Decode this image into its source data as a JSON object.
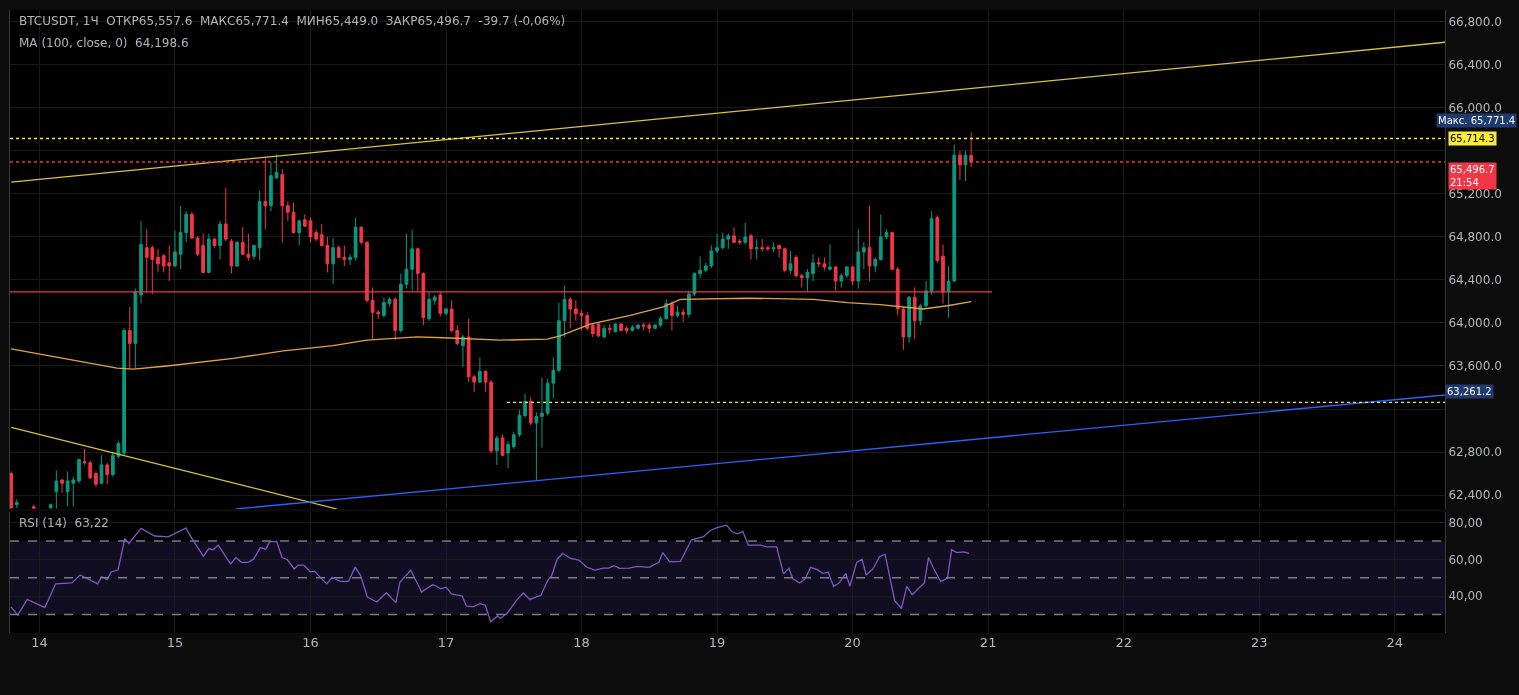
{
  "chart_data": [
    {
      "type": "candlestick",
      "title": "BTCUSDT, 1Ч  ОТКР65,557.6  МАКС65,771.4  МИН65,449.0  ЗАКР65,496.7  -39.7 (-0,06%)",
      "subtitle": "MA (100, close, 0)  64,198.6",
      "x": [
        13.792,
        13.833,
        13.958,
        14.083,
        14.125,
        14.167,
        14.208,
        14.25,
        14.292,
        14.333,
        14.375,
        14.417,
        14.458,
        14.5,
        14.542,
        14.583,
        14.625,
        14.667,
        14.708,
        14.75,
        14.792,
        14.833,
        14.875,
        14.917,
        14.958,
        15,
        15.042,
        15.083,
        15.125,
        15.167,
        15.208,
        15.25,
        15.292,
        15.333,
        15.375,
        15.417,
        15.458,
        15.5,
        15.542,
        15.583,
        15.625,
        15.667,
        15.708,
        15.75,
        15.792,
        15.833,
        15.875,
        15.917,
        15.958,
        16,
        16.042,
        16.083,
        16.125,
        16.167,
        16.208,
        16.25,
        16.292,
        16.333,
        16.375,
        16.417,
        16.458,
        16.5,
        16.542,
        16.583,
        16.625,
        16.667,
        16.708,
        16.75,
        16.792,
        16.833,
        16.875,
        16.917,
        16.958,
        17,
        17.042,
        17.083,
        17.125,
        17.167,
        17.208,
        17.25,
        17.292,
        17.333,
        17.375,
        17.417,
        17.458,
        17.5,
        17.542,
        17.583,
        17.625,
        17.667,
        17.708,
        17.75,
        17.792,
        17.833,
        17.875,
        17.917,
        17.958,
        18,
        18.042,
        18.083,
        18.125,
        18.167,
        18.208,
        18.25,
        18.292,
        18.333,
        18.375,
        18.417,
        18.458,
        18.5,
        18.542,
        18.583,
        18.625,
        18.667,
        18.708,
        18.75,
        18.792,
        18.833,
        18.875,
        18.917,
        18.958,
        19,
        19.042,
        19.083,
        19.125,
        19.167,
        19.208,
        19.25,
        19.292,
        19.333,
        19.375,
        19.417,
        19.458,
        19.5,
        19.542,
        19.583,
        19.625,
        19.667,
        19.708,
        19.75,
        19.792,
        19.833,
        19.875,
        19.917,
        19.958,
        20,
        20.042,
        20.083,
        20.125,
        20.167,
        20.208,
        20.25,
        20.292,
        20.333,
        20.375,
        20.417,
        20.458,
        20.5,
        20.542,
        20.583,
        20.625,
        20.667,
        20.708,
        20.75,
        20.792,
        20.833,
        20.875
      ],
      "ohlc": [
        [
          62600,
          62620,
          62280,
          62280
        ],
        [
          62310,
          62360,
          62280,
          62330
        ],
        [
          62290,
          62310,
          62270,
          62280
        ],
        [
          62280,
          62320,
          62275,
          62310
        ],
        [
          62430,
          62630,
          62275,
          62530
        ],
        [
          62540,
          62550,
          62420,
          62510
        ],
        [
          62430,
          62620,
          62295,
          62530
        ],
        [
          62510,
          62570,
          62295,
          62540
        ],
        [
          62530,
          62740,
          62510,
          62730
        ],
        [
          62710,
          62830,
          62680,
          62700
        ],
        [
          62700,
          62720,
          62550,
          62560
        ],
        [
          62600,
          62620,
          62480,
          62500
        ],
        [
          62510,
          62770,
          62500,
          62680
        ],
        [
          62680,
          62700,
          62500,
          62590
        ],
        [
          62590,
          62800,
          62570,
          62770
        ],
        [
          62760,
          62900,
          62740,
          62880
        ],
        [
          62790,
          63950,
          62770,
          63930
        ],
        [
          63930,
          64150,
          63580,
          63810
        ],
        [
          63810,
          64320,
          63580,
          64290
        ],
        [
          64260,
          64950,
          64180,
          64730
        ],
        [
          64700,
          64870,
          64290,
          64610
        ],
        [
          64700,
          64720,
          64270,
          64590
        ],
        [
          64610,
          64690,
          64470,
          64550
        ],
        [
          64625,
          64640,
          64470,
          64530
        ],
        [
          64560,
          64720,
          64390,
          64530
        ],
        [
          64530,
          64860,
          64520,
          64660
        ],
        [
          64640,
          65090,
          64500,
          64840
        ],
        [
          64840,
          65040,
          64750,
          65010
        ],
        [
          65010,
          65030,
          64780,
          64790
        ],
        [
          64790,
          64810,
          64620,
          64640
        ],
        [
          64720,
          64830,
          64460,
          64470
        ],
        [
          64470,
          64830,
          64460,
          64780
        ],
        [
          64780,
          64790,
          64700,
          64720
        ],
        [
          64720,
          64950,
          64590,
          64920
        ],
        [
          64920,
          65260,
          64760,
          64780
        ],
        [
          64760,
          64780,
          64460,
          64530
        ],
        [
          64530,
          64760,
          64520,
          64750
        ],
        [
          64750,
          64890,
          64630,
          64640
        ],
        [
          64640,
          64830,
          64580,
          64610
        ],
        [
          64620,
          64730,
          64590,
          64720
        ],
        [
          64700,
          65230,
          64580,
          65130
        ],
        [
          65130,
          65530,
          64870,
          65090
        ],
        [
          65090,
          65490,
          65040,
          65370
        ],
        [
          65350,
          65570,
          65340,
          65400
        ],
        [
          65380,
          65430,
          64750,
          65090
        ],
        [
          65090,
          65130,
          64950,
          65030
        ],
        [
          65030,
          65120,
          64830,
          64840
        ],
        [
          64840,
          64960,
          64720,
          64950
        ],
        [
          64960,
          65010,
          64890,
          64900
        ],
        [
          64950,
          64980,
          64750,
          64800
        ],
        [
          64840,
          64870,
          64760,
          64780
        ],
        [
          64820,
          64920,
          64710,
          64720
        ],
        [
          64720,
          64800,
          64470,
          64550
        ],
        [
          64550,
          64790,
          64360,
          64700
        ],
        [
          64700,
          64720,
          64600,
          64610
        ],
        [
          64610,
          64720,
          64530,
          64590
        ],
        [
          64590,
          64640,
          64540,
          64610
        ],
        [
          64610,
          64980,
          64580,
          64890
        ],
        [
          64890,
          64900,
          64730,
          64750
        ],
        [
          64750,
          64760,
          64190,
          64210
        ],
        [
          64210,
          64330,
          63850,
          64100
        ],
        [
          64100,
          64120,
          64040,
          64085
        ],
        [
          64070,
          64240,
          64050,
          64190
        ],
        [
          64180,
          64240,
          64150,
          64220
        ],
        [
          64220,
          64240,
          63840,
          63930
        ],
        [
          63930,
          64460,
          63910,
          64360
        ],
        [
          64360,
          64830,
          64320,
          64500
        ],
        [
          64500,
          64870,
          64300,
          64690
        ],
        [
          64690,
          64700,
          64290,
          64460
        ],
        [
          64460,
          64470,
          63980,
          64050
        ],
        [
          64040,
          64290,
          64020,
          64220
        ],
        [
          64210,
          64260,
          64170,
          64240
        ],
        [
          64260,
          64290,
          64060,
          64090
        ],
        [
          64090,
          64140,
          64070,
          64130
        ],
        [
          64130,
          64210,
          63910,
          63930
        ],
        [
          63930,
          63980,
          63790,
          63810
        ],
        [
          63790,
          63890,
          63590,
          63870
        ],
        [
          63870,
          64040,
          63450,
          63500
        ],
        [
          63500,
          63520,
          63360,
          63450
        ],
        [
          63450,
          63680,
          63440,
          63550
        ],
        [
          63550,
          63560,
          63360,
          63450
        ],
        [
          63450,
          63470,
          62790,
          62810
        ],
        [
          62810,
          62950,
          62680,
          62930
        ],
        [
          62930,
          62960,
          62760,
          62770
        ],
        [
          62790,
          62900,
          62650,
          62870
        ],
        [
          62850,
          62990,
          62830,
          62960
        ],
        [
          62960,
          63190,
          62940,
          63140
        ],
        [
          63140,
          63340,
          63120,
          63270
        ],
        [
          63270,
          63310,
          63050,
          63070
        ],
        [
          63070,
          63170,
          62530,
          63130
        ],
        [
          63130,
          63490,
          62840,
          63160
        ],
        [
          63160,
          63480,
          63140,
          63440
        ],
        [
          63440,
          63680,
          63300,
          63560
        ],
        [
          63560,
          64190,
          63540,
          64020
        ],
        [
          64020,
          64350,
          63870,
          64220
        ],
        [
          64220,
          64240,
          63950,
          64130
        ],
        [
          64130,
          64210,
          64020,
          64085
        ],
        [
          64090,
          64120,
          63930,
          64070
        ],
        [
          64070,
          64100,
          63930,
          63950
        ],
        [
          63980,
          64000,
          63870,
          63900
        ],
        [
          63990,
          64010,
          63870,
          63880
        ],
        [
          63870,
          63980,
          63860,
          63950
        ],
        [
          63950,
          63990,
          63900,
          63940
        ],
        [
          63920,
          64000,
          63910,
          63990
        ],
        [
          63990,
          64000,
          63920,
          63930
        ],
        [
          63950,
          63970,
          63900,
          63930
        ],
        [
          63930,
          63980,
          63920,
          63960
        ],
        [
          63950,
          63990,
          63940,
          63980
        ],
        [
          63980,
          64000,
          63930,
          63970
        ],
        [
          63980,
          64000,
          63910,
          63950
        ],
        [
          63950,
          63990,
          63940,
          63980
        ],
        [
          63980,
          64060,
          63960,
          64040
        ],
        [
          64040,
          64220,
          64030,
          64180
        ],
        [
          64180,
          64200,
          63930,
          64070
        ],
        [
          64070,
          64160,
          64050,
          64100
        ],
        [
          64100,
          64130,
          64010,
          64080
        ],
        [
          64080,
          64300,
          64050,
          64270
        ],
        [
          64270,
          64470,
          64250,
          64460
        ],
        [
          64460,
          64620,
          64420,
          64490
        ],
        [
          64490,
          64560,
          64470,
          64530
        ],
        [
          64530,
          64720,
          64510,
          64670
        ],
        [
          64670,
          64830,
          64650,
          64700
        ],
        [
          64700,
          64840,
          64680,
          64780
        ],
        [
          64780,
          64830,
          64690,
          64810
        ],
        [
          64810,
          64890,
          64740,
          64750
        ],
        [
          64760,
          64780,
          64730,
          64750
        ],
        [
          64750,
          64930,
          64730,
          64800
        ],
        [
          64810,
          64830,
          64590,
          64690
        ],
        [
          64690,
          64780,
          64590,
          64700
        ],
        [
          64700,
          64780,
          64660,
          64690
        ],
        [
          64700,
          64720,
          64670,
          64690
        ],
        [
          64690,
          64750,
          64660,
          64700
        ],
        [
          64720,
          64730,
          64610,
          64690
        ],
        [
          64690,
          64700,
          64470,
          64490
        ],
        [
          64490,
          64670,
          64460,
          64550
        ],
        [
          64610,
          64630,
          64420,
          64440
        ],
        [
          64440,
          64460,
          64330,
          64420
        ],
        [
          64420,
          64500,
          64290,
          64470
        ],
        [
          64460,
          64640,
          64390,
          64560
        ],
        [
          64560,
          64610,
          64520,
          64550
        ],
        [
          64550,
          64610,
          64490,
          64520
        ],
        [
          64500,
          64730,
          64490,
          64520
        ],
        [
          64520,
          64530,
          64300,
          64390
        ],
        [
          64390,
          64460,
          64330,
          64440
        ],
        [
          64440,
          64530,
          64420,
          64520
        ],
        [
          64520,
          64530,
          64350,
          64390
        ],
        [
          64390,
          64870,
          64320,
          64660
        ],
        [
          64660,
          64750,
          64500,
          64700
        ],
        [
          64700,
          65090,
          64390,
          64530
        ],
        [
          64530,
          64610,
          64470,
          64590
        ],
        [
          64590,
          65010,
          64580,
          64800
        ],
        [
          64800,
          64870,
          64780,
          64840
        ],
        [
          64840,
          64850,
          64490,
          64500
        ],
        [
          64500,
          64520,
          64070,
          64130
        ],
        [
          64130,
          64150,
          63750,
          63870
        ],
        [
          63870,
          64250,
          63820,
          64240
        ],
        [
          64240,
          64330,
          63850,
          64020
        ],
        [
          64020,
          64180,
          63980,
          64160
        ],
        [
          64160,
          64390,
          64140,
          64300
        ],
        [
          64300,
          65040,
          64260,
          64970
        ],
        [
          64980,
          65000,
          64560,
          64580
        ],
        [
          64620,
          64730,
          64180,
          64290
        ],
        [
          64290,
          64530,
          64050,
          64390
        ],
        [
          64390,
          65660,
          64380,
          65560
        ],
        [
          65560,
          65600,
          65330,
          65470
        ],
        [
          65470,
          65600,
          65320,
          65560
        ],
        [
          65557.6,
          65771.4,
          65449.0,
          65496.7
        ]
      ],
      "colors": [
        "#f23645",
        "#089981",
        "#f23645",
        "#089981",
        "#089981",
        "#f23645",
        "#089981",
        "#089981",
        "#089981",
        "#f23645",
        "#f23645",
        "#f23645",
        "#089981",
        "#f23645",
        "#089981",
        "#089981",
        "#089981",
        "#f23645",
        "#089981",
        "#089981",
        "#f23645",
        "#f23645",
        "#f23645",
        "#f23645",
        "#f23645",
        "#089981",
        "#089981",
        "#089981",
        "#f23645",
        "#f23645",
        "#f23645",
        "#089981",
        "#f23645",
        "#089981",
        "#f23645",
        "#f23645",
        "#089981",
        "#f23645",
        "#f23645",
        "#089981",
        "#089981",
        "#f23645",
        "#089981",
        "#089981",
        "#f23645",
        "#f23645",
        "#f23645",
        "#089981",
        "#f23645",
        "#f23645",
        "#f23645",
        "#f23645",
        "#f23645",
        "#089981",
        "#f23645",
        "#f23645",
        "#089981",
        "#089981",
        "#f23645",
        "#f23645",
        "#f23645",
        "#f23645",
        "#089981",
        "#089981",
        "#f23645",
        "#089981",
        "#089981",
        "#089981",
        "#f23645",
        "#f23645",
        "#089981",
        "#089981",
        "#f23645",
        "#089981",
        "#f23645",
        "#f23645",
        "#089981",
        "#f23645",
        "#f23645",
        "#089981",
        "#f23645",
        "#f23645",
        "#089981",
        "#f23645",
        "#089981",
        "#089981",
        "#089981",
        "#089981",
        "#f23645",
        "#089981",
        "#089981",
        "#089981",
        "#089981",
        "#089981",
        "#089981",
        "#f23645",
        "#f23645",
        "#f23645",
        "#f23645",
        "#f23645",
        "#f23645",
        "#089981",
        "#f23645",
        "#089981",
        "#f23645",
        "#f23645",
        "#089981",
        "#089981",
        "#f23645",
        "#f23645",
        "#089981",
        "#089981",
        "#089981",
        "#f23645",
        "#089981",
        "#f23645",
        "#089981",
        "#089981",
        "#089981",
        "#089981",
        "#089981",
        "#089981",
        "#089981",
        "#089981",
        "#f23645",
        "#f23645",
        "#089981",
        "#f23645",
        "#089981",
        "#f23645",
        "#f23645",
        "#089981",
        "#f23645",
        "#f23645",
        "#089981",
        "#f23645",
        "#f23645",
        "#089981",
        "#089981",
        "#f23645",
        "#f23645",
        "#089981",
        "#f23645",
        "#089981",
        "#089981",
        "#f23645",
        "#089981",
        "#089981",
        "#f23645",
        "#089981",
        "#089981",
        "#089981",
        "#f23645",
        "#f23645",
        "#f23645",
        "#089981",
        "#f23645",
        "#089981",
        "#089981",
        "#089981",
        "#f23645",
        "#f23645",
        "#089981",
        "#089981",
        "#f23645",
        "#089981",
        "#f23645"
      ],
      "series": [
        {
          "type": "line",
          "color": "#e0a53a",
          "x": [
            13.791,
            14.573,
            14.692,
            14.942,
            15.43,
            15.799,
            16.167,
            16.418,
            16.787,
            17.031,
            17.4,
            17.747,
            17.843,
            18.064,
            18.36,
            18.603,
            18.729,
            19.223,
            19.71,
            19.961,
            20.204,
            20.522,
            20.699,
            20.875
          ],
          "values": [
            63760,
            63580,
            63570,
            63600,
            63670,
            63740,
            63790,
            63840,
            63870,
            63860,
            63840,
            63850,
            63880,
            63990,
            64070,
            64150,
            64220,
            64230,
            64220,
            64190,
            64170,
            64130,
            64160,
            64198.6
          ]
        },
        {
          "type": "line",
          "color": "#d9c43c",
          "x": [
            13.792,
            24.371
          ],
          "values": [
            65310,
            66610
          ]
        },
        {
          "type": "line",
          "color": "#d9c43c",
          "x": [
            13.792,
            16.196
          ],
          "values": [
            63030,
            62270
          ]
        },
        {
          "type": "line",
          "color": "#2962ff",
          "x": [
            15.446,
            24.371
          ],
          "values": [
            62270,
            63330
          ]
        },
        {
          "type": "line",
          "color": "#f23645",
          "x": [
            13.783,
            21.029
          ],
          "values": [
            64290,
            64290
          ]
        },
        {
          "type": "line",
          "color": "#ffeb3b",
          "line_style": "dotted",
          "x": [
            17.45,
            24.371
          ],
          "values": [
            63261.2,
            63261.2
          ]
        }
      ],
      "ref_lines": [
        {
          "axis": "y",
          "value": 65714.3,
          "label": "65,714.3",
          "color": "#ffeb3b",
          "line_style": "dotted"
        },
        {
          "axis": "y",
          "value": 65496.7,
          "label": "65,496.7\n21:54",
          "color": "#f23645",
          "line_style": "dotted"
        }
      ],
      "annotations": [
        "Макс. 65,771.4",
        {
          "text": "63,261.2",
          "x": 24.371,
          "y": 63261.2
        }
      ],
      "xlim": [
        13.783,
        24.371
      ],
      "ylim": [
        62270,
        66910
      ],
      "yticks": [
        {
          "value": 62400,
          "label": "62,400.0"
        },
        {
          "value": 62800,
          "label": "62,800.0"
        },
        {
          "value": 63200,
          "label": null
        },
        {
          "value": 63600,
          "label": "63,600.0"
        },
        {
          "value": 64000,
          "label": "64,000.0"
        },
        {
          "value": 64400,
          "label": "64,400.0"
        },
        {
          "value": 64800,
          "label": "64,800.0"
        },
        {
          "value": 65200,
          "label": "65,200.0"
        },
        {
          "value": 65600,
          "label": null
        },
        {
          "value": 66000,
          "label": "66,000.0"
        },
        {
          "value": 66400,
          "label": "66,400.0"
        },
        {
          "value": 66800,
          "label": "66,800.0"
        }
      ],
      "xticks": [
        14,
        15,
        16,
        17,
        18,
        19,
        20,
        21,
        22,
        23,
        24
      ],
      "tick_labels": "y",
      "grid": true
    },
    {
      "type": "line",
      "title": "RSI (14)  63,22",
      "series": [
        {
          "color": "#7e57c2",
          "x": [
            13.79,
            13.84,
            13.91,
            14.04,
            14.12,
            14.24,
            14.3,
            14.43,
            14.46,
            14.5,
            14.53,
            14.58,
            14.63,
            14.66,
            14.75,
            14.85,
            14.95,
            15.08,
            15.13,
            15.21,
            15.25,
            15.28,
            15.32,
            15.41,
            15.45,
            15.49,
            15.54,
            15.58,
            15.63,
            15.67,
            15.7,
            15.75,
            15.79,
            15.83,
            15.88,
            15.91,
            15.95,
            16.0,
            16.03,
            16.12,
            16.16,
            16.22,
            16.28,
            16.33,
            16.37,
            16.42,
            16.49,
            16.56,
            16.63,
            16.66,
            16.74,
            16.82,
            16.9,
            16.92,
            16.96,
            17.0,
            17.04,
            17.12,
            17.15,
            17.2,
            17.25,
            17.29,
            17.33,
            17.38,
            17.4,
            17.45,
            17.52,
            17.57,
            17.62,
            17.66,
            17.7,
            17.75,
            17.78,
            17.82,
            17.86,
            17.92,
            17.98,
            18.04,
            18.1,
            18.16,
            18.2,
            18.24,
            18.28,
            18.35,
            18.41,
            18.5,
            18.57,
            18.6,
            18.65,
            18.73,
            18.81,
            18.9,
            18.95,
            19.0,
            19.07,
            19.11,
            19.15,
            19.19,
            19.23,
            19.32,
            19.37,
            19.44,
            19.49,
            19.53,
            19.56,
            19.61,
            19.65,
            19.69,
            19.74,
            19.78,
            19.82,
            19.86,
            19.9,
            19.95,
            19.98,
            20.03,
            20.07,
            20.1,
            20.15,
            20.2,
            20.24,
            20.31,
            20.36,
            20.4,
            20.44,
            20.49,
            20.53,
            20.56,
            20.6,
            20.65,
            20.7,
            20.73,
            20.77,
            20.82,
            20.86
          ],
          "values": [
            34.2,
            29.7,
            38.3,
            33.8,
            46.7,
            47.2,
            51.5,
            46.7,
            50.6,
            49.0,
            53.3,
            54.2,
            71.4,
            68.7,
            76.8,
            72.7,
            72.2,
            77.0,
            70.9,
            61.6,
            65.9,
            65.2,
            67.7,
            57.5,
            61.0,
            58.4,
            58.4,
            60.1,
            66.4,
            65.5,
            69.6,
            69.8,
            61.0,
            59.8,
            54.8,
            56.9,
            56.9,
            53.3,
            53.5,
            46.7,
            50.3,
            48.0,
            48.0,
            55.8,
            51.2,
            39.5,
            36.8,
            41.9,
            36.5,
            47.6,
            54.2,
            42.2,
            46.2,
            45.8,
            44.0,
            44.9,
            41.3,
            40.1,
            34.7,
            34.2,
            35.9,
            35.1,
            26.1,
            29.3,
            27.9,
            30.6,
            37.7,
            41.7,
            38.1,
            39.5,
            40.4,
            48.5,
            51.2,
            60.1,
            63.2,
            60.5,
            59.6,
            55.7,
            54.2,
            55.3,
            55.3,
            56.6,
            55.1,
            55.3,
            56.2,
            55.7,
            58.4,
            63.7,
            58.7,
            58.9,
            70.5,
            72.3,
            75.7,
            77.2,
            78.6,
            75.0,
            73.9,
            75.2,
            67.7,
            67.7,
            66.8,
            66.8,
            52.1,
            55.1,
            49.4,
            47.2,
            49.4,
            55.7,
            54.4,
            52.4,
            53.0,
            45.3,
            47.1,
            52.4,
            45.4,
            58.4,
            60.1,
            51.5,
            54.8,
            61.6,
            62.7,
            37.7,
            33.3,
            45.3,
            40.8,
            44.4,
            47.2,
            61.0,
            54.8,
            48.0,
            49.7,
            65.2,
            63.7,
            64.1,
            63.22
          ]
        }
      ],
      "ref_lines": [
        {
          "axis": "y",
          "value": 70,
          "color": "#787b86",
          "line_style": "dashed"
        },
        {
          "axis": "y",
          "value": 50,
          "color": "#787b86",
          "line_style": "dashed"
        },
        {
          "axis": "y",
          "value": 30,
          "color": "#787b86",
          "line_style": "dashed"
        }
      ],
      "bands": [
        {
          "axis": "y",
          "from": 30,
          "to": 70,
          "color": "#120e22"
        }
      ],
      "xlim": [
        13.783,
        24.371
      ],
      "ylim": [
        20,
        86
      ],
      "yticks": [
        {
          "value": 40,
          "label": "40,00"
        },
        {
          "value": 60,
          "label": "60,00"
        },
        {
          "value": 80,
          "label": "80,00"
        }
      ],
      "xticks": [
        14,
        15,
        16,
        17,
        18,
        19,
        20,
        21,
        22,
        23,
        24
      ],
      "grid": true
    }
  ]
}
